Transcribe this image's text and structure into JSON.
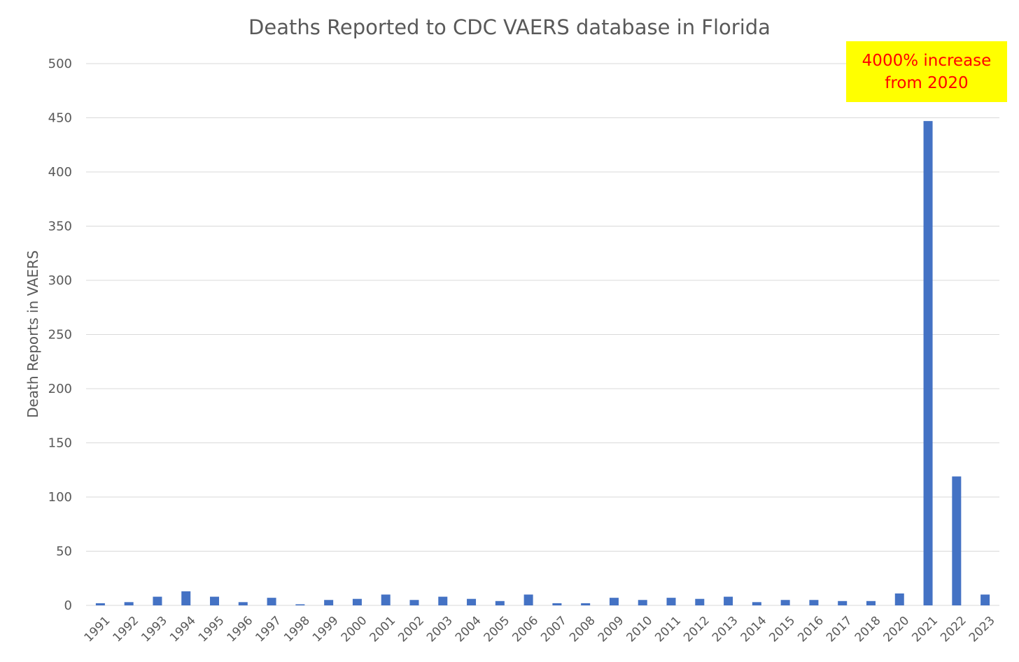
{
  "chart_data": {
    "type": "bar",
    "title": "Deaths Reported to CDC VAERS database in Florida",
    "xlabel": "",
    "ylabel": "Death Reports in VAERS",
    "ylim": [
      0,
      500
    ],
    "yticks": [
      0,
      50,
      100,
      150,
      200,
      250,
      300,
      350,
      400,
      450,
      500
    ],
    "grid": true,
    "categories": [
      "1991",
      "1992",
      "1993",
      "1994",
      "1995",
      "1996",
      "1997",
      "1998",
      "1999",
      "2000",
      "2001",
      "2002",
      "2003",
      "2004",
      "2005",
      "2006",
      "2007",
      "2008",
      "2009",
      "2010",
      "2011",
      "2012",
      "2013",
      "2014",
      "2015",
      "2016",
      "2017",
      "2018",
      "2020",
      "2021",
      "2022",
      "2023"
    ],
    "values": [
      2,
      3,
      8,
      13,
      8,
      3,
      7,
      1,
      5,
      6,
      10,
      5,
      8,
      6,
      4,
      10,
      2,
      2,
      7,
      5,
      7,
      6,
      8,
      3,
      5,
      5,
      4,
      4,
      11,
      447,
      119,
      10
    ],
    "bar_color": "#4472c4",
    "annotation": {
      "text": "4000% increase\nfrom 2020",
      "text_color": "#ff0000",
      "background": "#ffff00"
    }
  }
}
